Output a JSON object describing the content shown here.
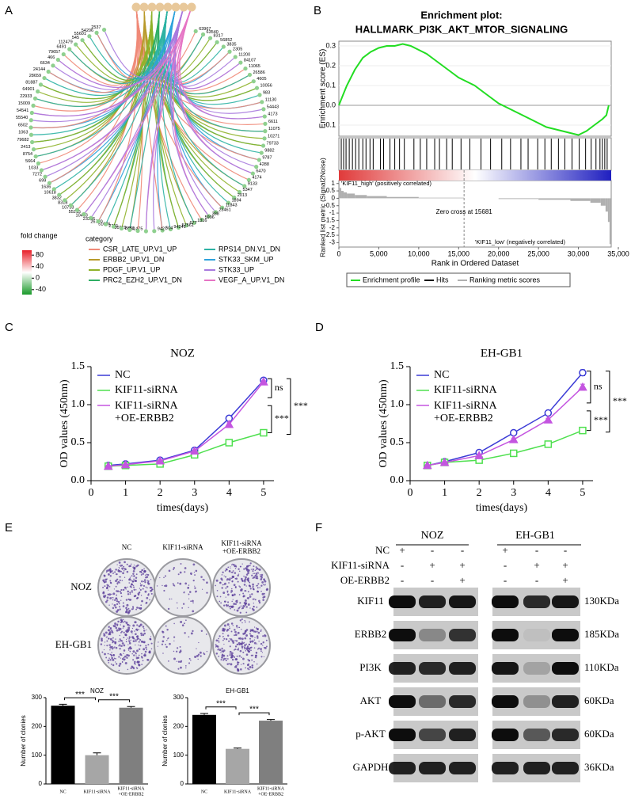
{
  "panel_labels": [
    "A",
    "B",
    "C",
    "D",
    "E",
    "F"
  ],
  "chart_data": [
    {
      "type": "network",
      "nodes": [
        "63967",
        "63540",
        "8317",
        "56852",
        "3835",
        "2305",
        "11200",
        "84107",
        "11065",
        "26586",
        "4605",
        "10056",
        "983",
        "11130",
        "54443",
        "4173",
        "6611",
        "11075",
        "10271",
        "79733",
        "9882",
        "9787",
        "4288",
        "6470",
        "4174",
        "9133",
        "5347",
        "2013",
        "1894",
        "11843",
        "23461",
        "388",
        "5996",
        "1316",
        "677",
        "57561",
        "94241",
        "604",
        "9427",
        "201475",
        "8851",
        "80219",
        "2791",
        "51626",
        "26780",
        "23386",
        "10403",
        "55215",
        "10733",
        "8318",
        "3832",
        "10618",
        "1636",
        "699",
        "7272",
        "1033",
        "5664",
        "8754",
        "2413",
        "79682",
        "1063",
        "6502",
        "55540",
        "54541",
        "15009",
        "22933",
        "64901",
        "81887",
        "28659",
        "24144",
        "6634",
        "466",
        "79657",
        "6491",
        "112479",
        "545",
        "55601",
        "54206",
        "2537"
      ],
      "node_color": "#8fd08f",
      "hub_color": "#e8c89a",
      "colorbar_title": "fold change",
      "colorbar_colors": [
        "#e8202a",
        "#ffffff",
        "#1a9a2a"
      ],
      "colorbar_lim": [
        -57,
        97
      ],
      "colorbar_ticks": [
        80,
        40,
        0,
        -40
      ],
      "legend_title": "category",
      "categories": [
        {
          "name": "CSR_LATE_UP.V1_UP",
          "color": "#f08a78"
        },
        {
          "name": "ERBB2_UP.V1_DN",
          "color": "#b89a2a"
        },
        {
          "name": "PDGF_UP.V1_UP",
          "color": "#8fb22a"
        },
        {
          "name": "PRC2_EZH2_UP.V1_DN",
          "color": "#2eae64"
        },
        {
          "name": "RPS14_DN.V1_DN",
          "color": "#2eb2a4"
        },
        {
          "name": "STK33_SKM_UP",
          "color": "#2ea2dc"
        },
        {
          "name": "STK33_UP",
          "color": "#a87ade"
        },
        {
          "name": "VEGF_A_UP.V1_DN",
          "color": "#e674c4"
        }
      ]
    },
    {
      "type": "gsea",
      "title": "Enrichment plot:",
      "subtitle": "HALLMARK_PI3K_AKT_MTOR_SIGNALING",
      "ylabel": "Enrichment score (ES)",
      "xlabel": "Rank in Ordered Dataset",
      "color": "#22dd22",
      "x": [
        0,
        500,
        1000,
        2000,
        3000,
        4000,
        5000,
        6000,
        7000,
        8000,
        9000,
        10000,
        11000,
        12000,
        13000,
        14000,
        15000,
        16000,
        17000,
        18000,
        19000,
        20000,
        21000,
        22000,
        23000,
        24000,
        25000,
        26000,
        27000,
        28000,
        29000,
        30000,
        31000,
        32000,
        33000,
        33500,
        33800
      ],
      "values": [
        0,
        0.05,
        0.1,
        0.18,
        0.24,
        0.27,
        0.29,
        0.3,
        0.3,
        0.31,
        0.3,
        0.28,
        0.26,
        0.23,
        0.2,
        0.17,
        0.14,
        0.12,
        0.1,
        0.07,
        0.04,
        0.01,
        -0.01,
        -0.03,
        -0.05,
        -0.07,
        -0.09,
        -0.11,
        -0.12,
        -0.13,
        -0.14,
        -0.15,
        -0.13,
        -0.1,
        -0.07,
        -0.05,
        0
      ],
      "ylim": [
        -0.156,
        0.324
      ],
      "yticks": [
        0.3,
        0.2,
        0.1,
        {
          "value": 0,
          "label": "0.0"
        },
        -0.1
      ],
      "hits": [
        300,
        600,
        900,
        1300,
        1700,
        2100,
        2500,
        3000,
        3400,
        3900,
        4300,
        5200,
        5600,
        6400,
        7000,
        7600,
        8200,
        9400,
        10200,
        11000,
        12000,
        12600,
        13500,
        14200,
        15300,
        16400,
        17800,
        19000,
        20400,
        21500,
        22800,
        23700,
        24900,
        25800,
        26600,
        27500,
        28300,
        29200,
        30100,
        30900,
        31600,
        32200,
        32700,
        33000,
        33300,
        33600
      ],
      "hit_color": "#000000",
      "gradient": [
        "#e03a3a",
        "#ffffff",
        "#1f1fc0"
      ],
      "rank_x": [
        0,
        100,
        300,
        600,
        1000,
        2000,
        3500,
        6000,
        10000,
        15681,
        20000,
        25000,
        29000,
        31500,
        32800,
        33400,
        33700,
        33900
      ],
      "rank_values": [
        1,
        0.7,
        0.5,
        0.4,
        0.32,
        0.22,
        0.15,
        0.09,
        0.04,
        0,
        -0.05,
        -0.1,
        -0.18,
        -0.3,
        -0.5,
        -0.9,
        -1.6,
        -3.1
      ],
      "rank_color": "#b0b0b0",
      "rank_ylabel": "Ranked list metric (Signal2Noise)",
      "rank_ylim": [
        -3.3,
        1.2
      ],
      "rank_yticks": [
        1,
        0.5,
        0,
        -0.5,
        -1,
        -1.5,
        -2,
        -2.5,
        -3
      ],
      "xlim": [
        0,
        35000
      ],
      "xticks": [
        0,
        {
          "value": 5000,
          "label": "5,000"
        },
        {
          "value": 10000,
          "label": "10,000"
        },
        {
          "value": 15000,
          "label": "15,000"
        },
        {
          "value": 20000,
          "label": "20,000"
        },
        {
          "value": 25000,
          "label": "25,000"
        },
        {
          "value": 30000,
          "label": "30,000"
        },
        {
          "value": 35000,
          "label": "35,000"
        }
      ],
      "pos_label": "'KIF11_high' (positively correlated)",
      "neg_label": "'KIF11_low' (negatively correlated)",
      "zero_cross": 15681,
      "zero_cross_label": "Zero cross at 15681",
      "legend": [
        "Enrichment profile",
        "Hits",
        "Ranking metric scores"
      ]
    },
    {
      "type": "line",
      "title": "NOZ",
      "xlabel": "times(days)",
      "ylabel": "OD values (450nm)",
      "x": [
        0.5,
        1,
        2,
        3,
        4,
        5
      ],
      "series": [
        {
          "name": "NC",
          "color": "#3b3bd6",
          "marker": "circle",
          "values": [
            0.2,
            0.22,
            0.27,
            0.4,
            0.82,
            1.32
          ],
          "errors": [
            0.01,
            0.01,
            0.01,
            0.015,
            0.02,
            0.02
          ]
        },
        {
          "name": "KIF11-siRNA",
          "color": "#4fe04f",
          "marker": "square",
          "values": [
            0.19,
            0.2,
            0.22,
            0.34,
            0.5,
            0.63
          ],
          "errors": [
            0.01,
            0.01,
            0.01,
            0.01,
            0.03,
            0.02
          ]
        },
        {
          "name": "KIF11-siRNA\n+OE-ERBB2",
          "color": "#c455e0",
          "marker": "triangle",
          "values": [
            0.19,
            0.21,
            0.26,
            0.39,
            0.74,
            1.3
          ],
          "errors": [
            0.01,
            0.01,
            0.01,
            0.01,
            0.03,
            0.015
          ]
        }
      ],
      "xlim": [
        0,
        5.3
      ],
      "ylim": [
        0,
        1.5
      ],
      "xticks": [
        0,
        1,
        2,
        3,
        4,
        5
      ],
      "yticks": [
        {
          "value": 0,
          "label": "0.0"
        },
        0.5,
        {
          "value": 1,
          "label": "1.0"
        },
        1.5
      ],
      "annotations": [
        "ns",
        "***",
        "***"
      ]
    },
    {
      "type": "line",
      "title": "EH-GB1",
      "xlabel": "times(days)",
      "ylabel": "OD values (450nm)",
      "x": [
        0.5,
        1,
        2,
        3,
        4,
        5
      ],
      "series": [
        {
          "name": "NC",
          "color": "#3b3bd6",
          "marker": "circle",
          "values": [
            0.2,
            0.25,
            0.37,
            0.63,
            0.89,
            1.42
          ],
          "errors": [
            0.01,
            0.01,
            0.01,
            0.03,
            0.02,
            0.04
          ]
        },
        {
          "name": "KIF11-siRNA",
          "color": "#4fe04f",
          "marker": "square",
          "values": [
            0.2,
            0.24,
            0.27,
            0.36,
            0.48,
            0.66
          ],
          "errors": [
            0.01,
            0.01,
            0.01,
            0.01,
            0.01,
            0.02
          ]
        },
        {
          "name": "KIF11-siRNA\n+OE-ERBB2",
          "color": "#c455e0",
          "marker": "triangle",
          "values": [
            0.2,
            0.24,
            0.33,
            0.54,
            0.8,
            1.23
          ],
          "errors": [
            0.01,
            0.01,
            0.01,
            0.02,
            0.02,
            0.04
          ]
        }
      ],
      "xlim": [
        0,
        5.3
      ],
      "ylim": [
        0,
        1.5
      ],
      "xticks": [
        0,
        1,
        2,
        3,
        4,
        5
      ],
      "yticks": [
        {
          "value": 0,
          "label": "0.0"
        },
        0.5,
        {
          "value": 1,
          "label": "1.0"
        },
        1.5
      ],
      "annotations": [
        "ns",
        "***",
        "***"
      ]
    },
    {
      "type": "bar",
      "title": "NOZ",
      "ylabel": "Number of clonies",
      "categories": [
        "NC",
        "KIF11-siRNA",
        "KIF11-siRNA\n+OE-ERBB2"
      ],
      "values": [
        272,
        100,
        265
      ],
      "errors": [
        5,
        8,
        4
      ],
      "colors": [
        "#000000",
        "#a6a6a6",
        "#7f7f7f"
      ],
      "ylim": [
        0,
        300
      ],
      "yticks": [
        0,
        100,
        200,
        300
      ],
      "annotations": [
        "***",
        "***"
      ]
    },
    {
      "type": "bar",
      "title": "EH-GB1",
      "ylabel": "Number of clonies",
      "categories": [
        "NC",
        "KIF11-siRNA",
        "KIF11-siRNA\n+OE-ERBB2"
      ],
      "values": [
        240,
        122,
        220
      ],
      "errors": [
        5,
        3,
        4
      ],
      "colors": [
        "#000000",
        "#a6a6a6",
        "#7f7f7f"
      ],
      "ylim": [
        0,
        300
      ],
      "yticks": [
        0,
        100,
        200,
        300
      ],
      "annotations": [
        "***",
        "***"
      ]
    }
  ],
  "plates": {
    "columns": [
      "NC",
      "KIF11-siRNA",
      "KIF11-siRNA\n+OE-ERBB2"
    ],
    "rows": [
      "NOZ",
      "EH-GB1"
    ]
  },
  "blot": {
    "groups": [
      "NOZ",
      "EH-GB1"
    ],
    "conditions": [
      {
        "name": "NC",
        "signs": [
          "+",
          "-",
          "-",
          "+",
          "-",
          "-"
        ]
      },
      {
        "name": "KIF11-siRNA",
        "signs": [
          "-",
          "+",
          "+",
          "-",
          "+",
          "+"
        ]
      },
      {
        "name": "OE-ERBB2",
        "signs": [
          "-",
          "-",
          "+",
          "-",
          "-",
          "+"
        ]
      }
    ],
    "proteins": [
      {
        "name": "KIF11",
        "size": "130KDa"
      },
      {
        "name": "ERBB2",
        "size": "185KDa"
      },
      {
        "name": "PI3K",
        "size": "110KDa"
      },
      {
        "name": "AKT",
        "size": "60KDa"
      },
      {
        "name": "p-AKT",
        "size": "60KDa"
      },
      {
        "name": "GAPDH",
        "size": "36KDa"
      }
    ]
  }
}
